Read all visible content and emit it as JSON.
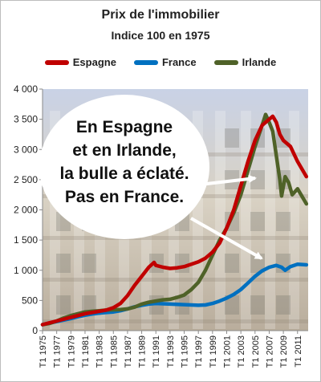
{
  "chart_data": {
    "type": "line",
    "title": "Prix de l'immobilier",
    "subtitle": "Indice 100 en 1975",
    "ylim": [
      0,
      4000
    ],
    "y_ticks": [
      "0",
      "500",
      "1 000",
      "1 500",
      "2 000",
      "2 500",
      "3 000",
      "3 500",
      "4 000"
    ],
    "x_ticks": [
      "T1 1975",
      "T1 1977",
      "T1 1979",
      "T1 1981",
      "T1 1983",
      "T1 1985",
      "T1 1987",
      "T1 1989",
      "T1 1991",
      "T1 1993",
      "T1 1995",
      "T1 1997",
      "T1 1999",
      "T1 2001",
      "T1 2003",
      "T1 2005",
      "T1 2007",
      "T1 2009",
      "T1 2011"
    ],
    "xlim": [
      1975,
      2012.5
    ],
    "grid": false,
    "legend_position": "top",
    "series": [
      {
        "name": "Espagne",
        "color": "#c00000",
        "points": [
          [
            1975,
            100
          ],
          [
            1976,
            130
          ],
          [
            1977,
            160
          ],
          [
            1978,
            190
          ],
          [
            1979,
            220
          ],
          [
            1980,
            250
          ],
          [
            1981,
            280
          ],
          [
            1982,
            300
          ],
          [
            1983,
            320
          ],
          [
            1984,
            340
          ],
          [
            1985,
            380
          ],
          [
            1986,
            450
          ],
          [
            1987,
            580
          ],
          [
            1988,
            750
          ],
          [
            1989,
            900
          ],
          [
            1990,
            1050
          ],
          [
            1990.75,
            1130
          ],
          [
            1991,
            1080
          ],
          [
            1992,
            1050
          ],
          [
            1993,
            1030
          ],
          [
            1994,
            1040
          ],
          [
            1995,
            1060
          ],
          [
            1996,
            1100
          ],
          [
            1997,
            1140
          ],
          [
            1998,
            1200
          ],
          [
            1999,
            1300
          ],
          [
            2000,
            1450
          ],
          [
            2001,
            1700
          ],
          [
            2002,
            2000
          ],
          [
            2003,
            2400
          ],
          [
            2004,
            2800
          ],
          [
            2005,
            3150
          ],
          [
            2006,
            3400
          ],
          [
            2007,
            3500
          ],
          [
            2007.5,
            3550
          ],
          [
            2008,
            3450
          ],
          [
            2008.5,
            3250
          ],
          [
            2009,
            3150
          ],
          [
            2010,
            3050
          ],
          [
            2011,
            2800
          ],
          [
            2012.25,
            2550
          ]
        ]
      },
      {
        "name": "France",
        "color": "#0070c0",
        "points": [
          [
            1975,
            100
          ],
          [
            1976,
            125
          ],
          [
            1977,
            150
          ],
          [
            1978,
            175
          ],
          [
            1979,
            200
          ],
          [
            1980,
            230
          ],
          [
            1981,
            255
          ],
          [
            1982,
            275
          ],
          [
            1983,
            290
          ],
          [
            1984,
            300
          ],
          [
            1985,
            310
          ],
          [
            1986,
            330
          ],
          [
            1987,
            360
          ],
          [
            1988,
            395
          ],
          [
            1989,
            420
          ],
          [
            1990,
            440
          ],
          [
            1991,
            450
          ],
          [
            1992,
            445
          ],
          [
            1993,
            440
          ],
          [
            1994,
            435
          ],
          [
            1995,
            430
          ],
          [
            1996,
            425
          ],
          [
            1997,
            420
          ],
          [
            1998,
            425
          ],
          [
            1999,
            450
          ],
          [
            2000,
            490
          ],
          [
            2001,
            540
          ],
          [
            2002,
            600
          ],
          [
            2003,
            680
          ],
          [
            2004,
            790
          ],
          [
            2005,
            900
          ],
          [
            2006,
            990
          ],
          [
            2007,
            1050
          ],
          [
            2008,
            1080
          ],
          [
            2008.75,
            1050
          ],
          [
            2009.25,
            1000
          ],
          [
            2010,
            1060
          ],
          [
            2011,
            1100
          ],
          [
            2012.25,
            1090
          ]
        ]
      },
      {
        "name": "Irlande",
        "color": "#4f6228",
        "points": [
          [
            1975,
            100
          ],
          [
            1976,
            120
          ],
          [
            1977,
            160
          ],
          [
            1978,
            210
          ],
          [
            1979,
            250
          ],
          [
            1980,
            280
          ],
          [
            1981,
            310
          ],
          [
            1982,
            320
          ],
          [
            1983,
            330
          ],
          [
            1984,
            340
          ],
          [
            1985,
            345
          ],
          [
            1986,
            350
          ],
          [
            1987,
            360
          ],
          [
            1988,
            390
          ],
          [
            1989,
            440
          ],
          [
            1990,
            470
          ],
          [
            1991,
            490
          ],
          [
            1992,
            510
          ],
          [
            1993,
            520
          ],
          [
            1994,
            550
          ],
          [
            1995,
            590
          ],
          [
            1996,
            680
          ],
          [
            1997,
            800
          ],
          [
            1998,
            1000
          ],
          [
            1999,
            1250
          ],
          [
            2000,
            1500
          ],
          [
            2001,
            1700
          ],
          [
            2002,
            1950
          ],
          [
            2003,
            2250
          ],
          [
            2004,
            2650
          ],
          [
            2005,
            3050
          ],
          [
            2006,
            3400
          ],
          [
            2006.5,
            3580
          ],
          [
            2007,
            3450
          ],
          [
            2007.5,
            3300
          ],
          [
            2008,
            2900
          ],
          [
            2008.5,
            2500
          ],
          [
            2008.75,
            2230
          ],
          [
            2009.25,
            2550
          ],
          [
            2009.75,
            2450
          ],
          [
            2010.25,
            2250
          ],
          [
            2011,
            2350
          ],
          [
            2012.25,
            2100
          ]
        ]
      }
    ],
    "annotation": {
      "lines": [
        "En Espagne",
        "et en Irlande,",
        "la bulle a éclaté.",
        "Pas en France."
      ]
    }
  }
}
